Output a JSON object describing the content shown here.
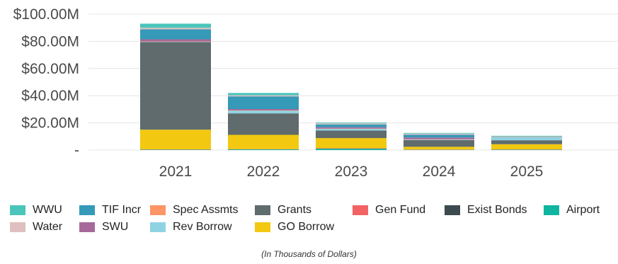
{
  "chart_data": {
    "type": "bar",
    "stacked": true,
    "categories": [
      "2021",
      "2022",
      "2023",
      "2024",
      "2025"
    ],
    "ylim": [
      0,
      100
    ],
    "yticks": [
      {
        "value": 0,
        "label": "-"
      },
      {
        "value": 20,
        "label": "$20.00M"
      },
      {
        "value": 40,
        "label": "$40.00M"
      },
      {
        "value": 60,
        "label": "$60.00M"
      },
      {
        "value": 80,
        "label": "$80.00M"
      },
      {
        "value": 100,
        "label": "$100.00M"
      }
    ],
    "grid": true,
    "legend_position": "bottom",
    "note": "(In Thousands of Dollars)",
    "series": [
      {
        "name": "Airport",
        "color": "#0fb5a0",
        "values": [
          0.3,
          0.5,
          1.0,
          0.2,
          0.3
        ]
      },
      {
        "name": "Exist Bonds",
        "color": "#3d4a4f",
        "values": [
          0.0,
          0.0,
          0.0,
          0.0,
          0.0
        ]
      },
      {
        "name": "Gen Fund",
        "color": "#f26363",
        "values": [
          0.2,
          0.2,
          0.3,
          0.2,
          0.2
        ]
      },
      {
        "name": "GO Borrow",
        "color": "#f2c811",
        "values": [
          14.5,
          10.5,
          7.5,
          2.0,
          3.8
        ]
      },
      {
        "name": "Grants",
        "color": "#5f6b6d",
        "values": [
          64.5,
          15.8,
          5.6,
          4.9,
          2.9
        ]
      },
      {
        "name": "Rev Borrow",
        "color": "#8fd3e3",
        "values": [
          0.2,
          2.0,
          1.2,
          0.4,
          2.3
        ]
      },
      {
        "name": "Spec Assmts",
        "color": "#fd9567",
        "values": [
          0.2,
          0.2,
          0.2,
          0.2,
          0.2
        ]
      },
      {
        "name": "SWU",
        "color": "#a66999",
        "values": [
          1.6,
          1.0,
          1.0,
          1.3,
          0.1
        ]
      },
      {
        "name": "TIF Incr",
        "color": "#3599b8",
        "values": [
          7.3,
          9.3,
          2.0,
          2.1,
          0.2
        ]
      },
      {
        "name": "Water",
        "color": "#dfbfbf",
        "values": [
          1.2,
          0.8,
          0.8,
          0.8,
          0.1
        ]
      },
      {
        "name": "WWU",
        "color": "#4ac5bb",
        "values": [
          3.0,
          1.7,
          0.6,
          0.5,
          0.4
        ]
      }
    ]
  },
  "legend": [
    {
      "label": "WWU",
      "color": "#4ac5bb"
    },
    {
      "label": "TIF Incr",
      "color": "#3599b8"
    },
    {
      "label": "Spec Assmts",
      "color": "#fd9567"
    },
    {
      "label": "Grants",
      "color": "#5f6b6d"
    },
    {
      "label": "Gen Fund",
      "color": "#f26363"
    },
    {
      "label": "Exist Bonds",
      "color": "#3d4a4f"
    },
    {
      "label": "Airport",
      "color": "#0fb5a0"
    },
    {
      "label": "Water",
      "color": "#dfbfbf"
    },
    {
      "label": "SWU",
      "color": "#a66999"
    },
    {
      "label": "Rev Borrow",
      "color": "#8fd3e3"
    },
    {
      "label": "GO Borrow",
      "color": "#f2c811"
    }
  ]
}
